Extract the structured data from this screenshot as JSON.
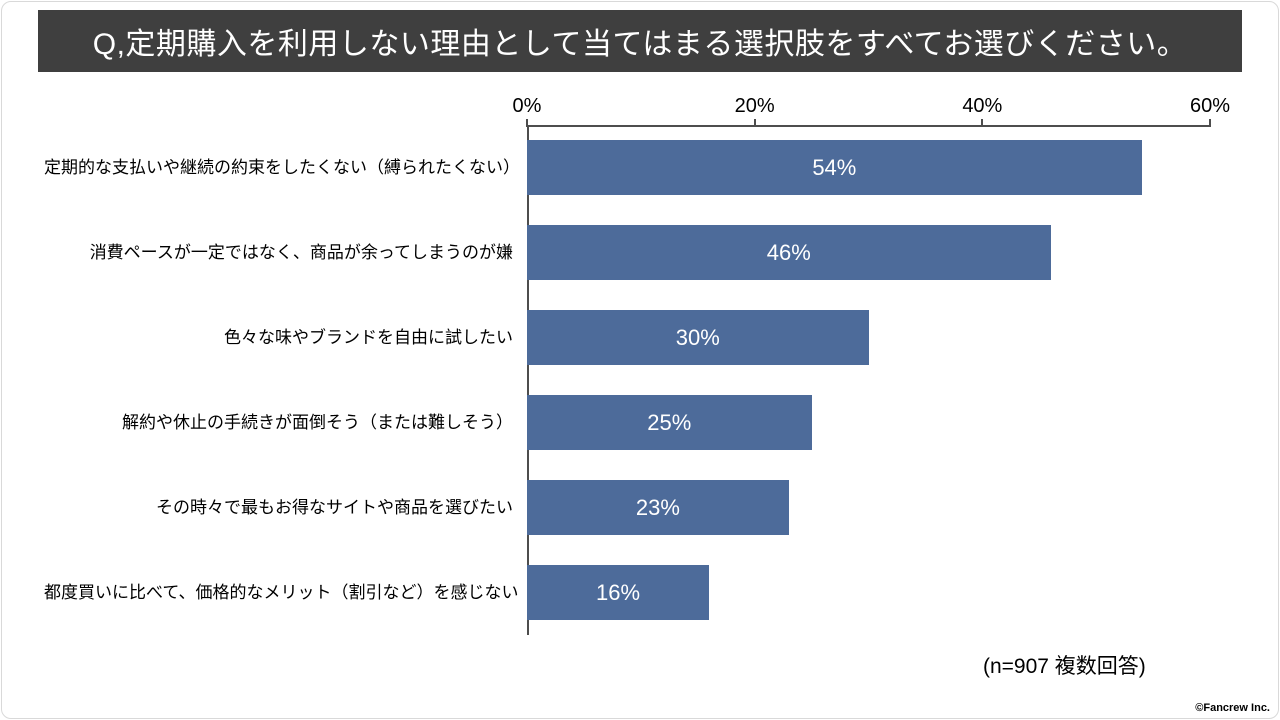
{
  "header": {
    "title": "Q,定期購入を利用しない理由として当てはまる選択肢をすべてお選びください。"
  },
  "colors": {
    "bar": "#4d6b9a",
    "header_bg": "#3f3f3f",
    "axis": "#4d4d4d"
  },
  "chart_data": {
    "type": "bar",
    "orientation": "horizontal",
    "categories": [
      "定期的な支払いや継続の約束をしたくない（縛られたくない）",
      "消費ペースが一定ではなく、商品が余ってしまうのが嫌",
      "色々な味やブランドを自由に試したい",
      "解約や休止の手続きが面倒そう（または難しそう）",
      "その時々で最もお得なサイトや商品を選びたい",
      "都度買いに比べて、価格的なメリット（割引など）を感じない"
    ],
    "values": [
      54,
      46,
      30,
      25,
      23,
      16
    ],
    "value_labels": [
      "54%",
      "46%",
      "30%",
      "25%",
      "23%",
      "16%"
    ],
    "xlim": [
      0,
      60
    ],
    "x_ticks": [
      "0%",
      "20%",
      "40%",
      "60%"
    ],
    "grid": false,
    "legend": false
  },
  "footer": {
    "note": "(n=907 複数回答)",
    "copyright": "©Fancrew Inc."
  }
}
